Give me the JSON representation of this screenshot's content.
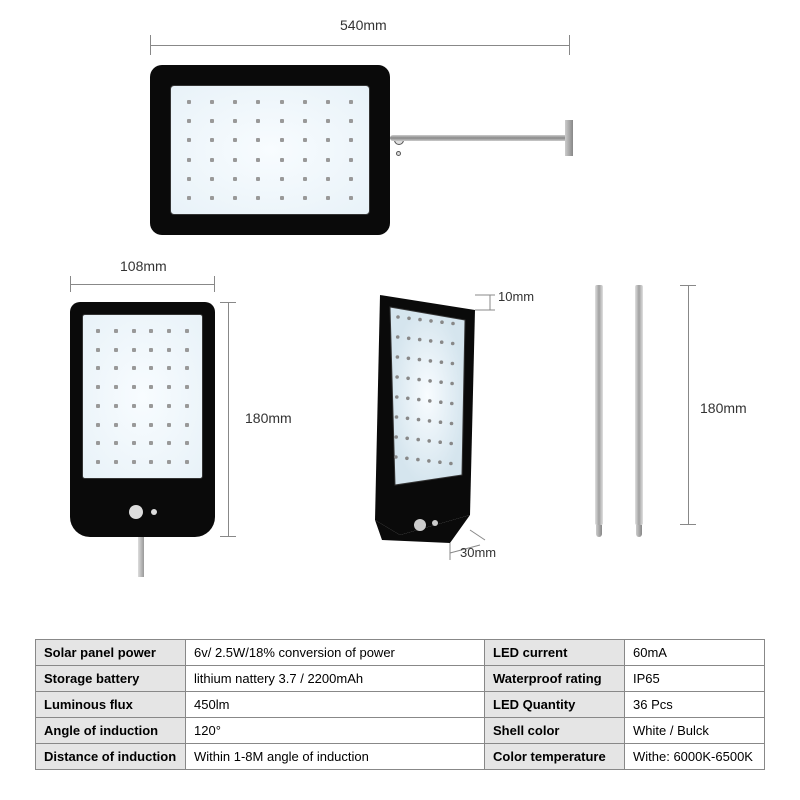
{
  "dimensions": {
    "total_width": "540mm",
    "unit_width": "108mm",
    "unit_height": "180mm",
    "thickness_top": "10mm",
    "thickness_bottom": "30mm",
    "pole_length": "180mm"
  },
  "colors": {
    "body": "#0a0a0a",
    "panel_light": "#f8fcff",
    "panel_edge": "#e8f2f8",
    "led": "#999999",
    "dim_line": "#888888",
    "table_header_bg": "#e5e5e5",
    "table_border": "#888888",
    "metal": "#b0b0b0"
  },
  "led_grid": {
    "top_cols": 8,
    "top_rows": 6,
    "front_cols": 6,
    "front_rows": 8
  },
  "specs": [
    {
      "l_label": "Solar panel power",
      "l_value": "6v/ 2.5W/18% conversion of power",
      "r_label": "LED current",
      "r_value": "60mA"
    },
    {
      "l_label": "Storage battery",
      "l_value": "lithium nattery 3.7 / 2200mAh",
      "r_label": "Waterproof rating",
      "r_value": "IP65"
    },
    {
      "l_label": "Luminous flux",
      "l_value": "450lm",
      "r_label": "LED Quantity",
      "r_value": "36 Pcs"
    },
    {
      "l_label": "Angle of induction",
      "l_value": "120°",
      "r_label": "Shell color",
      "r_value": "White / Bulck"
    },
    {
      "l_label": "Distance of induction",
      "l_value": "Within 1-8M angle of induction",
      "r_label": "Color temperature",
      "r_value": "Withe: 6000K-6500K"
    }
  ]
}
